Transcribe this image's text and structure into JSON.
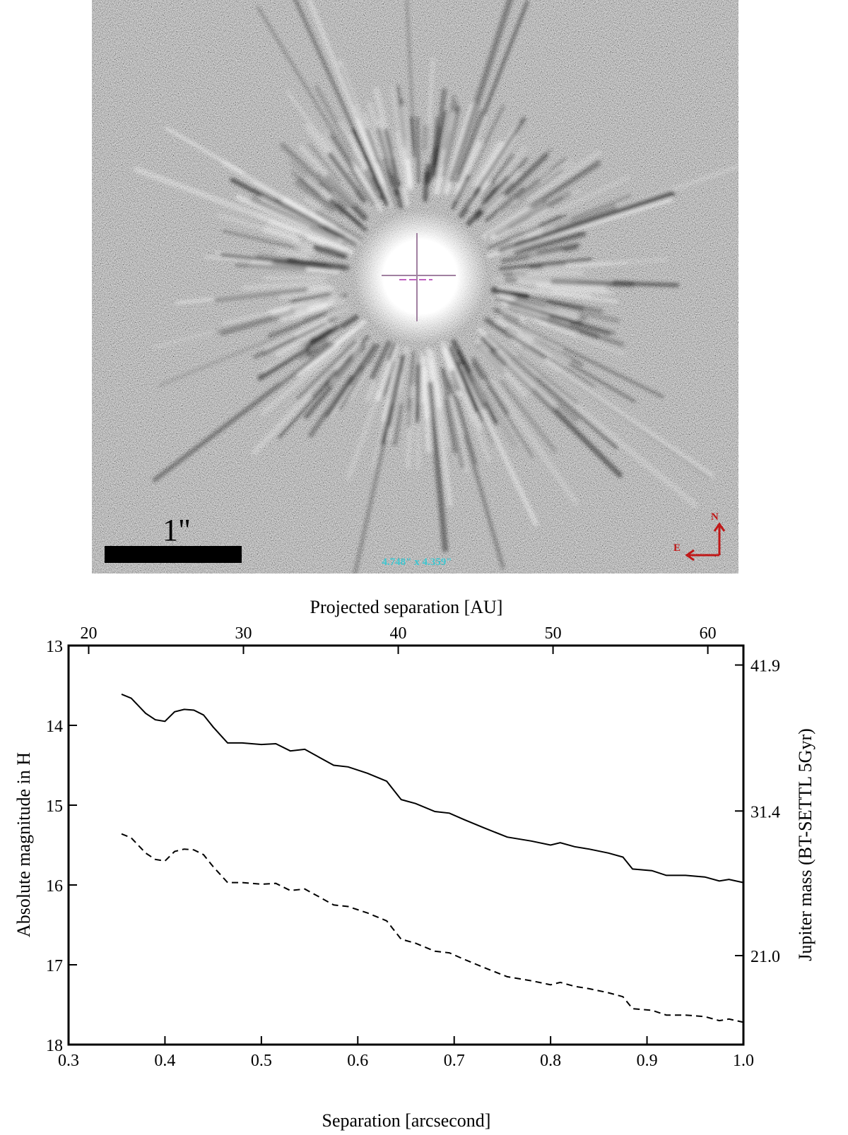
{
  "image": {
    "scale_label": "1\"",
    "field_label": "4.748\" x 4.359\"",
    "north": "N",
    "east": "E"
  },
  "chart_data": {
    "type": "line",
    "x_label": "Separation [arcsecond]",
    "y_label": "Absolute magnitude in H",
    "x2_label": "Projected separation [AU]",
    "y2_label": "Jupiter mass (BT-SETTL 5Gyr)",
    "x": [
      0.355,
      0.365,
      0.38,
      0.39,
      0.4,
      0.41,
      0.42,
      0.43,
      0.44,
      0.45,
      0.465,
      0.48,
      0.5,
      0.515,
      0.53,
      0.545,
      0.56,
      0.575,
      0.59,
      0.61,
      0.63,
      0.645,
      0.66,
      0.68,
      0.695,
      0.71,
      0.73,
      0.755,
      0.78,
      0.8,
      0.81,
      0.825,
      0.84,
      0.86,
      0.875,
      0.885,
      0.905,
      0.92,
      0.94,
      0.96,
      0.975,
      0.985,
      1.0
    ],
    "series": [
      {
        "color": "#000000",
        "linestyle": "solid",
        "values": [
          13.61,
          13.66,
          13.85,
          13.93,
          13.95,
          13.83,
          13.8,
          13.81,
          13.87,
          14.02,
          14.22,
          14.22,
          14.24,
          14.23,
          14.32,
          14.3,
          14.4,
          14.5,
          14.52,
          14.6,
          14.7,
          14.93,
          14.98,
          15.08,
          15.1,
          15.18,
          15.28,
          15.4,
          15.45,
          15.5,
          15.47,
          15.52,
          15.55,
          15.6,
          15.65,
          15.8,
          15.82,
          15.88,
          15.88,
          15.9,
          15.95,
          15.93,
          15.97
        ]
      },
      {
        "color": "#000000",
        "linestyle": "dashed",
        "values": [
          15.36,
          15.41,
          15.6,
          15.68,
          15.7,
          15.58,
          15.55,
          15.56,
          15.62,
          15.77,
          15.97,
          15.97,
          15.99,
          15.98,
          16.07,
          16.05,
          16.15,
          16.25,
          16.27,
          16.35,
          16.45,
          16.68,
          16.73,
          16.83,
          16.85,
          16.93,
          17.03,
          17.15,
          17.2,
          17.25,
          17.22,
          17.27,
          17.3,
          17.35,
          17.4,
          17.55,
          17.57,
          17.63,
          17.63,
          17.65,
          17.7,
          17.68,
          17.72
        ]
      }
    ],
    "xlim": [
      0.3,
      1.0
    ],
    "xticks": [
      0.3,
      0.4,
      0.5,
      0.6,
      0.7,
      0.8,
      0.9,
      {
        "value": 1,
        "label": "1.0"
      }
    ],
    "ylim": [
      18,
      13
    ],
    "yticks": [
      13,
      14,
      15,
      16,
      17,
      18
    ],
    "x2lim": [
      18.7,
      62.3
    ],
    "x2ticks": [
      20,
      30,
      40,
      50,
      60
    ],
    "y2lim": [
      14.6,
      43.3
    ],
    "y2ticks": [
      41.9,
      31.4,
      {
        "value": 21,
        "label": "21.0"
      }
    ]
  }
}
